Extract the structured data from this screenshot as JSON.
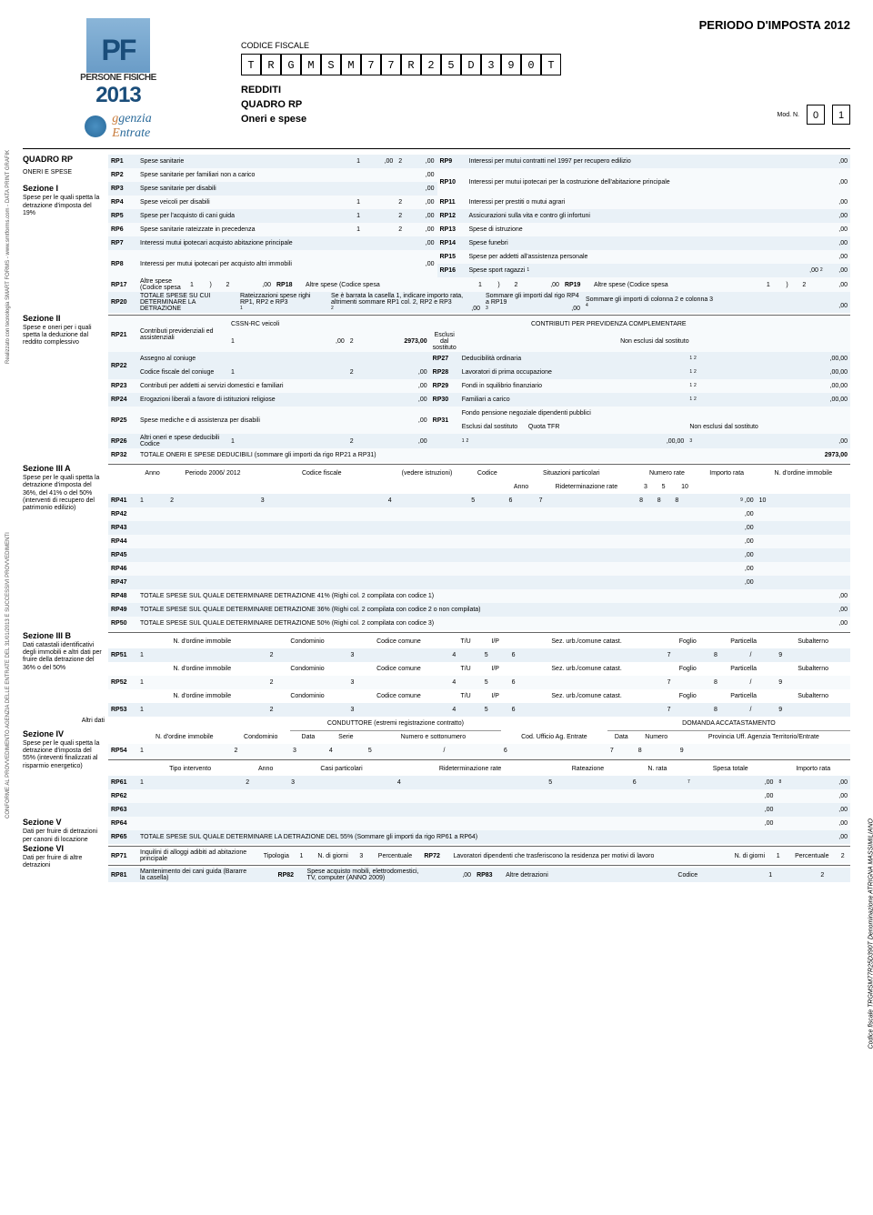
{
  "header": {
    "periodo": "PERIODO D'IMPOSTA 2012",
    "persone": "PERSONE FISICHE",
    "year": "2013",
    "agenzia1": "genzia",
    "agenzia2": "ntrate",
    "cf_label": "CODICE FISCALE",
    "cf": [
      "T",
      "R",
      "G",
      "M",
      "S",
      "M",
      "7",
      "7",
      "R",
      "2",
      "5",
      "D",
      "3",
      "9",
      "0",
      "T"
    ],
    "redditi": "REDDITI",
    "quadro": "QUADRO RP",
    "oneri": "Oneri e spese",
    "modn_label": "Mod. N.",
    "modn": [
      "0",
      "1"
    ]
  },
  "left": {
    "quadro_rp": "QUADRO RP",
    "oneri_spese": "ONERI E SPESE",
    "sez1": "Sezione I",
    "sez1_sub": "Spese per le quali spetta la detrazione d'imposta del 19%",
    "sez2": "Sezione II",
    "sez2_sub": "Spese e oneri per i quali spetta la deduzione dal reddito complessivo",
    "sez3a": "Sezione III A",
    "sez3a_sub": "Spese per le quali spetta la detrazione d'imposta del 36%, del 41% o del 50% (interventi di recupero del patrimonio edilizio)",
    "sez3b": "Sezione III B",
    "sez3b_sub": "Dati catastali identificativi degli immobili e altri dati per fruire della detrazione del 36% o del 50%",
    "altri_dati": "Altri dati",
    "sez4": "Sezione IV",
    "sez4_sub": "Spese per le quali spetta la detrazione d'imposta del 55% (inteventi finalizzati al risparmio energetico)",
    "sez5": "Sezione V",
    "sez5_sub": "Dati per fruire di detrazioni per canoni di locazione",
    "sez6": "Sezione VI",
    "sez6_sub": "Dati per fruire di altre detrazioni"
  },
  "rows": {
    "RP1": {
      "d": "Spese sanitarie"
    },
    "RP2": {
      "d": "Spese sanitarie per familiari non a carico"
    },
    "RP3": {
      "d": "Spese sanitarie per disabili"
    },
    "RP4": {
      "d": "Spese veicoli per disabili"
    },
    "RP5": {
      "d": "Spese per l'acquisto di cani guida"
    },
    "RP6": {
      "d": "Spese sanitarie rateizzate in precedenza"
    },
    "RP7": {
      "d": "Interessi mutui ipotecari acquisto abitazione principale"
    },
    "RP8": {
      "d": "Interessi per mutui ipotecari per acquisto altri immobili"
    },
    "RP9": {
      "d": "Interessi per mutui contratti nel 1997 per recupero edilizio"
    },
    "RP10": {
      "d": "Interessi per mutui ipotecari per la costruzione dell'abitazione principale"
    },
    "RP11": {
      "d": "Interessi per prestiti o mutui agrari"
    },
    "RP12": {
      "d": "Assicurazioni sulla vita e contro gli infortuni"
    },
    "RP13": {
      "d": "Spese di istruzione"
    },
    "RP14": {
      "d": "Spese funebri"
    },
    "RP15": {
      "d": "Spese per addetti all'assistenza personale"
    },
    "RP16": {
      "d": "Spese sport ragazzi"
    },
    "RP17": {
      "d": "Altre spese (Codice spesa"
    },
    "RP18": {
      "d": "Altre spese (Codice spesa"
    },
    "RP19": {
      "d": "Altre spese (Codice spesa"
    },
    "RP20": {
      "d": "TOTALE SPESE SU CUI DETERMINARE LA DETRAZIONE"
    },
    "RP20_c1": "Rateizzazioni spese righi RP1, RP2 e RP3",
    "RP20_c2": "Se è barrata la casella 1, indicare importo rata, altrimenti sommare RP1 col. 2, RP2 e RP3",
    "RP20_c3": "Sommare gli importi dal rigo RP4 a RP19",
    "RP20_c4": "Sommare gli importi di colonna 2 e colonna 3",
    "RP21": {
      "d": "Contributi previdenziali ed assistenziali",
      "v": "2973"
    },
    "RP21_cssn": "CSSN-RC veicoli",
    "RP21_contrib": "CONTRIBUTI PER PREVIDENZA COMPLEMENTARE",
    "RP21_escl": "Esclusi dal sostituto",
    "RP21_nonescl": "Non esclusi dal sostituto",
    "RP22": {
      "d": "Assegno al coniuge",
      "d2": "Codice fiscale del coniuge"
    },
    "RP23": {
      "d": "Contributi per addetti ai servizi domestici e familiari"
    },
    "RP24": {
      "d": "Erogazioni liberali a favore di istituzioni religiose"
    },
    "RP25": {
      "d": "Spese mediche e di assistenza per disabili"
    },
    "RP26": {
      "d": "Altri oneri e spese deducibili",
      "d2": "Codice"
    },
    "RP27": {
      "d": "Deducibilità ordinaria"
    },
    "RP28": {
      "d": "Lavoratori di prima occupazione"
    },
    "RP29": {
      "d": "Fondi in squilibrio finanziario"
    },
    "RP30": {
      "d": "Familiari a carico"
    },
    "RP31": {
      "d": "Fondo pensione negoziale dipendenti pubblici",
      "d2": "Esclusi dal sostituto",
      "d3": "Quota TFR",
      "d4": "Non esclusi dal sostituto"
    },
    "RP32": {
      "d": "TOTALE ONERI E SPESE DEDUCIBILI (sommare gli importi da rigo RP21 a RP31)",
      "v": "2973"
    },
    "sez3a_headers": [
      "Anno",
      "Periodo 2006/ 2012",
      "Codice fiscale",
      "(vedere istruzioni)",
      "Codice",
      "Situazioni particolari",
      "Anno",
      "Rideterminazione rate",
      "Numero rate",
      "3",
      "5",
      "10",
      "Importo rata",
      "N. d'ordine immobile"
    ],
    "RP41": {},
    "RP42": {},
    "RP43": {},
    "RP44": {},
    "RP45": {},
    "RP46": {},
    "RP47": {},
    "RP48": {
      "d": "TOTALE SPESE SUL QUALE DETERMINARE DETRAZIONE 41% (Righi col. 2 compilata con codice 1)"
    },
    "RP49": {
      "d": "TOTALE SPESE SUL QUALE DETERMINARE DETRAZIONE 36% (Righi col. 2 compilata con codice 2 o non compilata)"
    },
    "RP50": {
      "d": "TOTALE SPESE SUL QUALE DETERMINARE DETRAZIONE 50% (Righi col. 2 compilata con codice 3)"
    },
    "sez3b_headers": [
      "N. d'ordine immobile",
      "Condominio",
      "Codice comune",
      "T/U",
      "I/P",
      "Sez. urb./comune catast.",
      "Foglio",
      "Particella",
      "/",
      "Subalterno"
    ],
    "RP51": {},
    "RP52": {},
    "RP53": {},
    "RP54_headers": [
      "N. d'ordine immobile",
      "Condominio",
      "CONDUTTORE (estremi registrazione contratto)",
      "Data",
      "Serie",
      "Numero e sottonumero",
      "/",
      "Cod. Ufficio Ag. Entrate",
      "DOMANDA ACCATASTAMENTO",
      "Data",
      "Numero",
      "Provincia Uff. Agenzia Territorio/Entrate"
    ],
    "RP54": {},
    "sez4_headers": [
      "Tipo intervento",
      "Anno",
      "Casi particolari",
      "Rideterminazione rate",
      "Rateazione",
      "N. rata",
      "Spesa totale",
      "Importo rata"
    ],
    "RP61": {},
    "RP62": {},
    "RP63": {},
    "RP64": {},
    "RP65": {
      "d": "TOTALE SPESE SUL QUALE DETERMINARE LA DETRAZIONE DEL 55% (Sommare gli importi da rigo RP61 a RP64)"
    },
    "RP71": {
      "d": "Inquilini di alloggi adibiti ad abitazione principale",
      "h": [
        "Tipologia",
        "N. di giorni",
        "Percentuale"
      ]
    },
    "RP72": {
      "d": "Lavoratori dipendenti che trasferiscono la residenza per motivi di lavoro",
      "h": [
        "N. di giorni",
        "Percentuale"
      ]
    },
    "RP81": {
      "d": "Mantenimento dei cani guida (Bararre la casella)"
    },
    "RP82": {
      "d": "Spese acquisto mobili, elettrodomestici, TV, computer (ANNO 2009)"
    },
    "RP83": {
      "d": "Altre detrazioni",
      "d2": "Codice"
    }
  },
  "side_left": "Realizzato con tecnologia SMART FORMS - www.smtforms.com - DATA PRINT GRAFIK",
  "side_left2": "CONFORME AL PROVVEDIMENTO AGENZIA DELLE ENTRATE DEL 31/01/2013 E SUCCESSIVI PROVVEDIMENTI",
  "side_right": "Codice fiscale TRGMSM77R25D390T Denominazione ATRIGNA MASSIMILIANO",
  "suffix": ",00"
}
